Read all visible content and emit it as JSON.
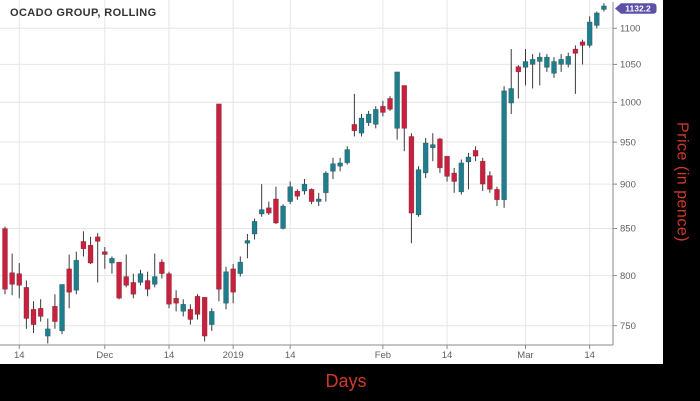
{
  "title": "OCADO GROUP, ROLLING",
  "x_axis_label": "Days",
  "y_axis_label": "Price (in pence)",
  "last_price": "1132.2",
  "colors": {
    "up": "#1f7d8c",
    "down": "#c8213e",
    "wick": "#3a3a3a",
    "grid": "#e6e6e6",
    "axis": "#8a8a8a",
    "tick_text": "#5f5f5f",
    "title_text": "#343434",
    "badge_bg": "#5b51a8",
    "badge_text": "#ffffff",
    "axis_label_red": "#cf3a28",
    "panel_bg": "#ffffff",
    "frame_bg": "#000000"
  },
  "chart_data": {
    "type": "candlestick",
    "title": "OCADO GROUP, ROLLING",
    "xlabel": "Days",
    "ylabel": "Price (in pence)",
    "y_scale": "log",
    "grid": true,
    "y_ticks": [
      750,
      800,
      850,
      900,
      950,
      1000,
      1050,
      1100
    ],
    "y_range": [
      733,
      1140
    ],
    "x_ticks": [
      {
        "index": 2,
        "label": "14"
      },
      {
        "index": 14,
        "label": "Dec"
      },
      {
        "index": 23,
        "label": "14"
      },
      {
        "index": 32,
        "label": "2019"
      },
      {
        "index": 40,
        "label": "14"
      },
      {
        "index": 53,
        "label": "Feb"
      },
      {
        "index": 62,
        "label": "14"
      },
      {
        "index": 73,
        "label": "Mar"
      },
      {
        "index": 82,
        "label": "14"
      }
    ],
    "last_close": 1132.2,
    "ohlc_order": [
      "open",
      "high",
      "low",
      "close"
    ],
    "candles": [
      [
        850,
        852,
        781,
        786
      ],
      [
        803,
        823,
        780,
        791
      ],
      [
        802,
        813,
        777,
        790
      ],
      [
        788,
        795,
        747,
        757
      ],
      [
        766,
        774,
        743,
        751
      ],
      [
        767,
        776,
        754,
        759
      ],
      [
        740,
        757,
        733,
        747
      ],
      [
        769,
        781,
        747,
        754
      ],
      [
        745,
        791,
        742,
        791
      ],
      [
        807,
        822,
        767,
        783
      ],
      [
        785,
        825,
        781,
        816
      ],
      [
        836,
        847,
        820,
        828
      ],
      [
        832,
        841,
        812,
        813
      ],
      [
        841,
        845,
        793,
        836
      ],
      [
        825,
        830,
        807,
        822
      ],
      [
        813,
        820,
        802,
        818
      ],
      [
        814,
        814,
        776,
        777
      ],
      [
        799,
        822,
        788,
        790
      ],
      [
        793,
        802,
        777,
        781
      ],
      [
        793,
        806,
        790,
        802
      ],
      [
        795,
        804,
        779,
        786
      ],
      [
        791,
        823,
        788,
        799
      ],
      [
        814,
        817,
        797,
        802
      ],
      [
        802,
        804,
        767,
        771
      ],
      [
        777,
        785,
        764,
        772
      ],
      [
        764,
        776,
        759,
        771
      ],
      [
        766,
        771,
        751,
        756
      ],
      [
        779,
        781,
        756,
        761
      ],
      [
        778,
        778,
        735,
        740
      ],
      [
        751,
        767,
        745,
        764
      ],
      [
        998,
        998,
        774,
        786
      ],
      [
        772,
        809,
        766,
        804
      ],
      [
        807,
        812,
        772,
        783
      ],
      [
        802,
        820,
        799,
        814
      ],
      [
        834,
        844,
        818,
        837
      ],
      [
        844,
        861,
        838,
        858
      ],
      [
        866,
        900,
        863,
        871
      ],
      [
        873,
        880,
        865,
        867
      ],
      [
        883,
        897,
        855,
        856
      ],
      [
        850,
        877,
        849,
        875
      ],
      [
        880,
        903,
        877,
        897
      ],
      [
        892,
        894,
        882,
        886
      ],
      [
        892,
        906,
        888,
        900
      ],
      [
        894,
        895,
        877,
        880
      ],
      [
        880,
        890,
        875,
        883
      ],
      [
        890,
        915,
        880,
        913
      ],
      [
        915,
        931,
        906,
        924
      ],
      [
        921,
        931,
        915,
        925
      ],
      [
        925,
        945,
        923,
        941
      ],
      [
        972,
        1011,
        957,
        964
      ],
      [
        961,
        985,
        957,
        980
      ],
      [
        974,
        989,
        970,
        985
      ],
      [
        972,
        995,
        967,
        991
      ],
      [
        995,
        1002,
        982,
        987
      ],
      [
        1005,
        1008,
        989,
        991
      ],
      [
        967,
        1040,
        953,
        1040
      ],
      [
        1022,
        1022,
        939,
        967
      ],
      [
        957,
        961,
        834,
        867
      ],
      [
        865,
        921,
        863,
        917
      ],
      [
        913,
        955,
        907,
        949
      ],
      [
        943,
        961,
        927,
        947
      ],
      [
        954,
        955,
        913,
        919
      ],
      [
        933,
        933,
        903,
        909
      ],
      [
        913,
        919,
        890,
        903
      ],
      [
        891,
        929,
        888,
        925
      ],
      [
        926,
        937,
        894,
        932
      ],
      [
        940,
        945,
        927,
        933
      ],
      [
        927,
        931,
        892,
        900
      ],
      [
        910,
        915,
        890,
        894
      ],
      [
        894,
        897,
        875,
        882
      ],
      [
        882,
        1021,
        873,
        1015
      ],
      [
        999,
        1071,
        985,
        1018
      ],
      [
        1047,
        1049,
        1005,
        1040
      ],
      [
        1046,
        1071,
        1022,
        1054
      ],
      [
        1050,
        1064,
        1018,
        1057
      ],
      [
        1054,
        1066,
        1022,
        1060
      ],
      [
        1046,
        1064,
        1040,
        1060
      ],
      [
        1038,
        1060,
        1032,
        1054
      ],
      [
        1050,
        1064,
        1040,
        1057
      ],
      [
        1050,
        1066,
        1046,
        1061
      ],
      [
        1071,
        1076,
        1011,
        1065
      ],
      [
        1081,
        1084,
        1050,
        1076
      ],
      [
        1076,
        1117,
        1073,
        1109
      ],
      [
        1104,
        1124,
        1100,
        1122
      ],
      [
        1127,
        1136,
        1124,
        1132.2
      ]
    ]
  }
}
